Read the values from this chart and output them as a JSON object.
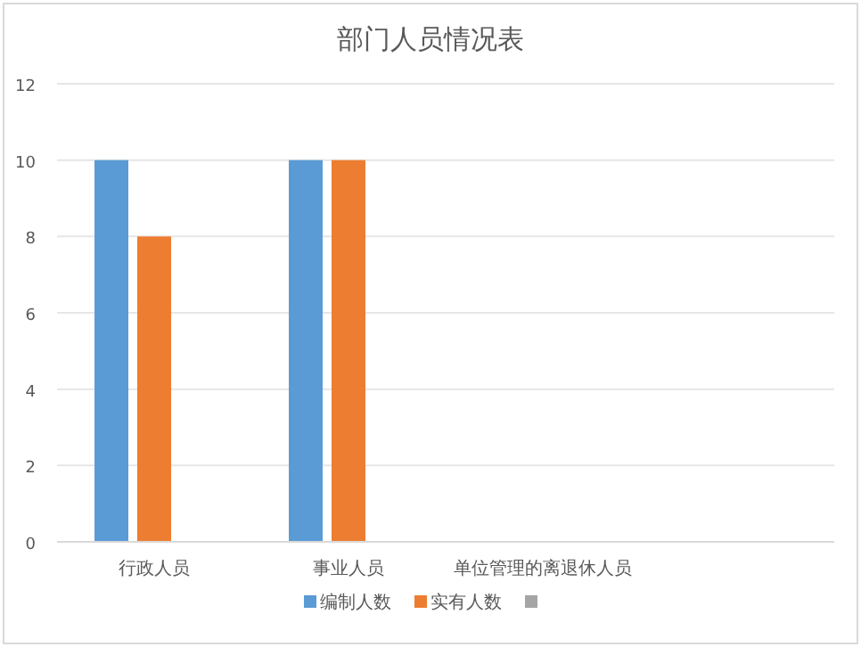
{
  "chart_data": {
    "type": "bar",
    "title": "部门人员情况表",
    "categories": [
      "行政人员",
      "事业人员",
      "单位管理的离退休人员",
      null
    ],
    "series": [
      {
        "name": "编制人数",
        "color": "#5b9bd5",
        "values": [
          10,
          10,
          null,
          null
        ]
      },
      {
        "name": "实有人数",
        "color": "#ed7d31",
        "values": [
          8,
          10,
          null,
          null
        ]
      },
      {
        "color": "#a5a5a5",
        "values": [
          null,
          null,
          null,
          null
        ]
      }
    ],
    "ylim": [
      0,
      12
    ],
    "yticks": [
      0,
      2,
      4,
      6,
      8,
      10,
      12
    ],
    "grid": "y",
    "legend": "bottom"
  }
}
